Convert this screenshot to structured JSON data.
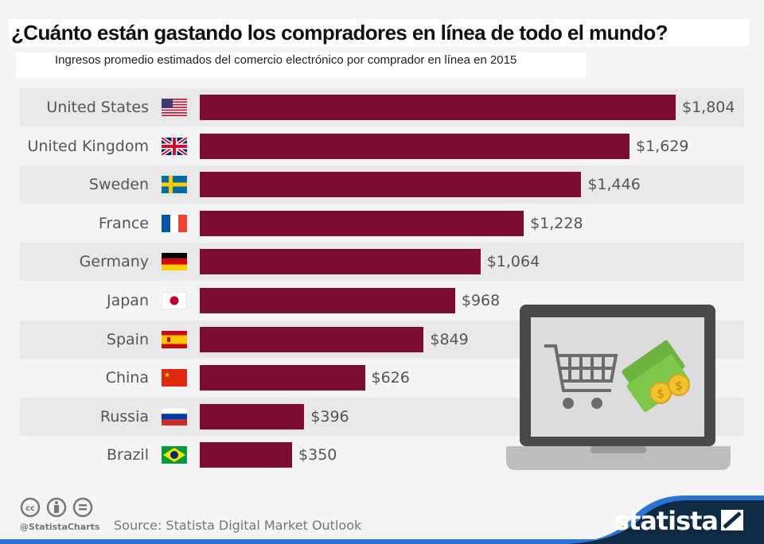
{
  "title": "¿Cuánto están gastando los compradores en línea de todo el mundo?",
  "subtitle": "Ingresos  promedio estimados del comercio electrónico  por comprador en línea  en 2015",
  "chart_data": {
    "type": "bar",
    "orientation": "horizontal",
    "categories": [
      "United States",
      "United Kingdom",
      "Sweden",
      "France",
      "Germany",
      "Japan",
      "Spain",
      "China",
      "Russia",
      "Brazil"
    ],
    "values": [
      1804,
      1629,
      1446,
      1228,
      1064,
      968,
      849,
      626,
      396,
      350
    ],
    "data_labels": [
      "$1,804",
      "$1,629",
      "$1,446",
      "$1,228",
      "$1,064",
      "$968",
      "$849",
      "$626",
      "$396",
      "$350"
    ],
    "bar_color": "#7d0c35",
    "grid": false
  },
  "footer": {
    "handle": "@StatistaCharts",
    "source": "Source: Statista Digital Market Outlook",
    "brand": "statista"
  },
  "icons": [
    "cc-icon",
    "attribution-icon",
    "no-derivatives-icon",
    "laptop-shopping-cart-icon",
    "money-icon"
  ]
}
